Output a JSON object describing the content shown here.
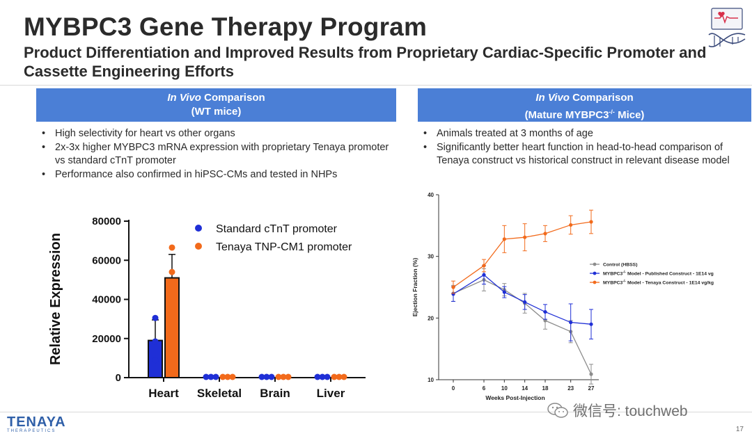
{
  "slide": {
    "title": "MYBPC3 Gene Therapy Program",
    "subtitle": "Product Differentiation and Improved Results from Proprietary Cardiac-Specific Promoter and Cassette Engineering Efforts",
    "page_number": "17"
  },
  "brand": {
    "name": "TENAYA",
    "tagline": "THERAPEUTICS"
  },
  "watermark": {
    "text": "微信号: touchweb"
  },
  "left_panel": {
    "header_italic": "In Vivo",
    "header_rest": " Comparison",
    "header_line2": "(WT mice)",
    "bullets": [
      "High selectivity for heart vs other organs",
      "2x-3x higher MYBPC3 mRNA expression with proprietary Tenaya promoter vs standard cTnT promoter",
      "Performance also confirmed in hiPSC-CMs and tested in NHPs"
    ]
  },
  "right_panel": {
    "header_italic": "In Vivo",
    "header_rest": " Comparison",
    "header_line2_a": "(Mature MYBPC3",
    "header_line2_sup": "-/-",
    "header_line2_b": " Mice)",
    "bullets": [
      "Animals treated at 3 months of age",
      "Significantly better heart function in head-to-head comparison of Tenaya construct vs historical construct in relevant disease model"
    ]
  },
  "chart_data": [
    {
      "type": "bar",
      "ylabel": "Relative Expression",
      "ylim": [
        0,
        80000
      ],
      "yticks": [
        "0",
        "20000",
        "40000",
        "60000",
        "80000"
      ],
      "categories": [
        "Heart",
        "Skeletal",
        "Brain",
        "Liver"
      ],
      "legend_position": "top-right",
      "series": [
        {
          "name": "Standard cTnT promoter",
          "color": "#1f2fd6",
          "values": [
            19000,
            0,
            0,
            0
          ],
          "errors": [
            10500,
            0,
            0,
            0
          ],
          "points": [
            [
              30500,
              18500,
              9000
            ],
            [
              0,
              0,
              0
            ],
            [
              0,
              0,
              0
            ],
            [
              0,
              0,
              0
            ]
          ]
        },
        {
          "name": "Tenaya TNP-CM1 promoter",
          "color": "#f26a1b",
          "values": [
            51000,
            0,
            0,
            0
          ],
          "errors": [
            12000,
            0,
            0,
            0
          ],
          "points": [
            [
              66500,
              54000,
              33000
            ],
            [
              0,
              0,
              0
            ],
            [
              0,
              0,
              0
            ],
            [
              0,
              0,
              0
            ]
          ]
        }
      ]
    },
    {
      "type": "line",
      "xlabel": "Weeks Post-Injection",
      "ylabel": "Ejection Fraction (%)",
      "ylim": [
        10,
        40
      ],
      "yticks": [
        "10",
        "20",
        "30",
        "40"
      ],
      "x": [
        0,
        6,
        10,
        14,
        18,
        23,
        27
      ],
      "legend_position": "right",
      "series": [
        {
          "name_pre": "Control (HBSS)",
          "name_sup": "",
          "name_post": "",
          "color": "#8c8c8c",
          "values": [
            24.0,
            26.2,
            24.6,
            22.4,
            19.6,
            17.8,
            10.9
          ],
          "errors": [
            1.3,
            1.8,
            1.0,
            1.6,
            1.4,
            1.8,
            1.6
          ]
        },
        {
          "name_pre": "MYBPC3",
          "name_sup": "-/-",
          "name_post": " Model - Published Construct - 1E14 vg/kg",
          "color": "#1f2fd6",
          "values": [
            23.9,
            27.0,
            24.2,
            22.6,
            21.0,
            19.3,
            19.0
          ],
          "errors": [
            1.2,
            1.5,
            0.9,
            1.2,
            1.2,
            3.0,
            2.4
          ]
        },
        {
          "name_pre": "MYBPC3",
          "name_sup": "-/-",
          "name_post": " Model - Tenaya Construct - 1E14 vg/kg",
          "color": "#f26a1b",
          "values": [
            25.0,
            28.5,
            32.8,
            33.1,
            33.7,
            35.1,
            35.6
          ],
          "errors": [
            1.0,
            1.0,
            2.2,
            2.2,
            1.3,
            1.5,
            1.9
          ]
        }
      ]
    }
  ]
}
